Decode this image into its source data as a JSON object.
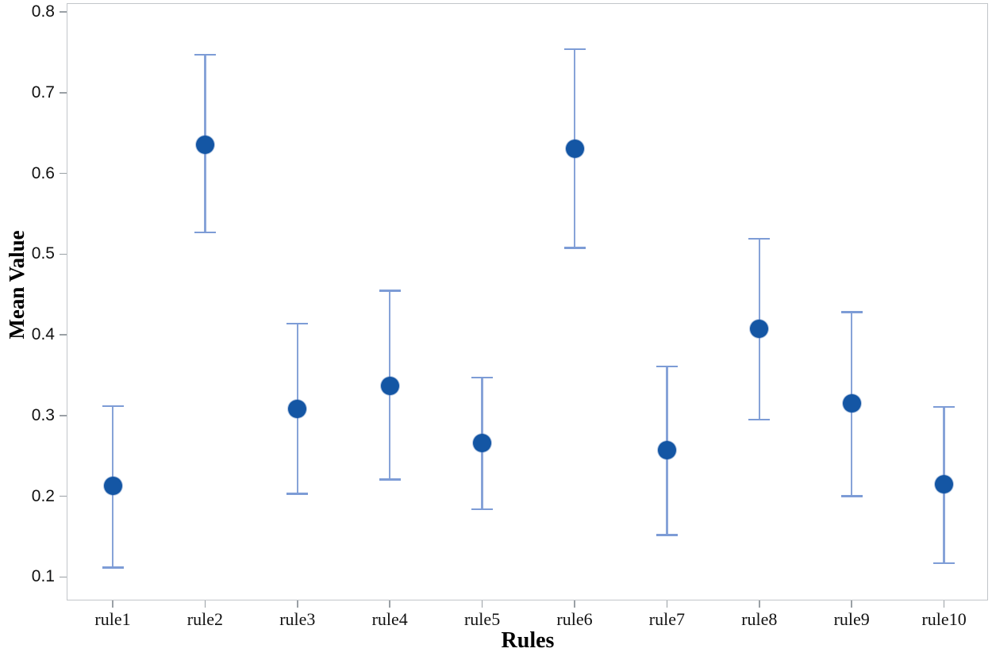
{
  "chart_data": {
    "type": "scatter",
    "title": "",
    "xlabel": "Rules",
    "ylabel": "Mean Value",
    "categories": [
      "rule1",
      "rule2",
      "rule3",
      "rule4",
      "rule5",
      "rule6",
      "rule7",
      "rule8",
      "rule9",
      "rule10"
    ],
    "series": [
      {
        "name": "Mean Value",
        "values": [
          0.213,
          0.636,
          0.308,
          0.337,
          0.266,
          0.631,
          0.257,
          0.408,
          0.315,
          0.215
        ],
        "error_high": [
          0.312,
          0.747,
          0.414,
          0.455,
          0.347,
          0.754,
          0.361,
          0.519,
          0.428,
          0.311
        ],
        "error_low": [
          0.112,
          0.527,
          0.203,
          0.221,
          0.184,
          0.508,
          0.152,
          0.295,
          0.2,
          0.117
        ]
      }
    ],
    "yticks": [
      0.1,
      0.2,
      0.3,
      0.4,
      0.5,
      0.6,
      0.7,
      0.8
    ],
    "ytick_labels": [
      "0.1",
      "0.2",
      "0.3",
      "0.4",
      "0.5",
      "0.6",
      "0.7",
      "0.8"
    ],
    "ylim": [
      0.071,
      0.811
    ],
    "grid": false,
    "legend": null,
    "marker": "circle-with-error-bars",
    "colors": {
      "point": "#1456a4",
      "error_bar": "#7d9cd6",
      "error_bar_stem": "#87a3d8",
      "axis_border": "#c2c6ca",
      "tick": "#9aa0a5",
      "text": "#111111"
    }
  }
}
